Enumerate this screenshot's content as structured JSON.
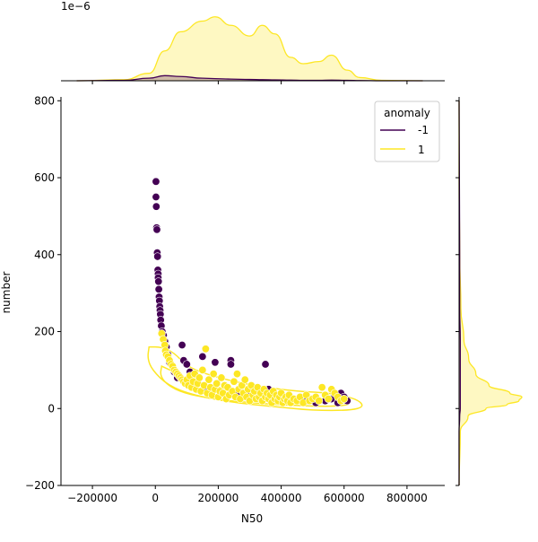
{
  "chart_data": {
    "type": "scatter",
    "xlabel": "N50",
    "ylabel": "number",
    "xlim": [
      -300000,
      920000
    ],
    "ylim": [
      -200,
      810
    ],
    "xticks": [
      -200000,
      0,
      200000,
      400000,
      600000,
      800000
    ],
    "xtick_labels": [
      "−200000",
      "0",
      "200000",
      "400000",
      "600000",
      "800000"
    ],
    "yticks": [
      -200,
      0,
      200,
      400,
      600,
      800
    ],
    "ytick_labels": [
      "−200",
      "0",
      "200",
      "400",
      "600",
      "800"
    ],
    "grid": false,
    "marginal_top_offset_label": "1e−6",
    "legend": {
      "title": "anomaly",
      "placement": "top-right",
      "entries": [
        {
          "label": "-1",
          "color": "#440154"
        },
        {
          "label": "1",
          "color": "#fde725"
        }
      ]
    },
    "series": [
      {
        "name": "-1",
        "color": "#440154",
        "points": [
          [
            2000,
            590
          ],
          [
            2000,
            550
          ],
          [
            3000,
            525
          ],
          [
            4000,
            470
          ],
          [
            5000,
            465
          ],
          [
            6000,
            405
          ],
          [
            7000,
            395
          ],
          [
            8000,
            360
          ],
          [
            9000,
            350
          ],
          [
            9000,
            340
          ],
          [
            10000,
            330
          ],
          [
            11000,
            310
          ],
          [
            12000,
            290
          ],
          [
            13000,
            280
          ],
          [
            14000,
            265
          ],
          [
            15000,
            255
          ],
          [
            16000,
            245
          ],
          [
            17000,
            230
          ],
          [
            19000,
            215
          ],
          [
            22000,
            200
          ],
          [
            26000,
            190
          ],
          [
            30000,
            175
          ],
          [
            35000,
            160
          ],
          [
            40000,
            140
          ],
          [
            45000,
            120
          ],
          [
            55000,
            110
          ],
          [
            60000,
            95
          ],
          [
            70000,
            80
          ],
          [
            85000,
            165
          ],
          [
            90000,
            125
          ],
          [
            100000,
            115
          ],
          [
            110000,
            95
          ],
          [
            125000,
            60
          ],
          [
            135000,
            70
          ],
          [
            150000,
            135
          ],
          [
            160000,
            55
          ],
          [
            190000,
            120
          ],
          [
            240000,
            125
          ],
          [
            240000,
            115
          ],
          [
            260000,
            40
          ],
          [
            280000,
            30
          ],
          [
            300000,
            35
          ],
          [
            320000,
            25
          ],
          [
            350000,
            115
          ],
          [
            360000,
            50
          ],
          [
            400000,
            30
          ],
          [
            430000,
            25
          ],
          [
            480000,
            20
          ],
          [
            510000,
            15
          ],
          [
            540000,
            20
          ],
          [
            560000,
            25
          ],
          [
            580000,
            15
          ],
          [
            590000,
            40
          ],
          [
            600000,
            30
          ],
          [
            610000,
            20
          ]
        ]
      },
      {
        "name": "1",
        "color": "#fde725",
        "points": [
          [
            20000,
            195
          ],
          [
            25000,
            180
          ],
          [
            30000,
            165
          ],
          [
            32000,
            150
          ],
          [
            35000,
            140
          ],
          [
            40000,
            135
          ],
          [
            45000,
            125
          ],
          [
            50000,
            115
          ],
          [
            55000,
            110
          ],
          [
            60000,
            100
          ],
          [
            65000,
            95
          ],
          [
            70000,
            90
          ],
          [
            75000,
            85
          ],
          [
            80000,
            80
          ],
          [
            85000,
            75
          ],
          [
            90000,
            70
          ],
          [
            95000,
            65
          ],
          [
            100000,
            75
          ],
          [
            105000,
            60
          ],
          [
            110000,
            85
          ],
          [
            115000,
            55
          ],
          [
            120000,
            70
          ],
          [
            125000,
            90
          ],
          [
            130000,
            50
          ],
          [
            135000,
            65
          ],
          [
            140000,
            80
          ],
          [
            145000,
            45
          ],
          [
            150000,
            100
          ],
          [
            155000,
            60
          ],
          [
            160000,
            155
          ],
          [
            165000,
            40
          ],
          [
            170000,
            75
          ],
          [
            175000,
            55
          ],
          [
            180000,
            35
          ],
          [
            185000,
            90
          ],
          [
            190000,
            50
          ],
          [
            195000,
            65
          ],
          [
            200000,
            30
          ],
          [
            205000,
            45
          ],
          [
            210000,
            80
          ],
          [
            215000,
            40
          ],
          [
            220000,
            60
          ],
          [
            225000,
            25
          ],
          [
            230000,
            55
          ],
          [
            235000,
            35
          ],
          [
            245000,
            45
          ],
          [
            250000,
            70
          ],
          [
            255000,
            30
          ],
          [
            260000,
            90
          ],
          [
            265000,
            50
          ],
          [
            270000,
            25
          ],
          [
            275000,
            60
          ],
          [
            280000,
            40
          ],
          [
            285000,
            75
          ],
          [
            290000,
            30
          ],
          [
            295000,
            50
          ],
          [
            300000,
            20
          ],
          [
            305000,
            60
          ],
          [
            310000,
            35
          ],
          [
            315000,
            45
          ],
          [
            320000,
            25
          ],
          [
            325000,
            55
          ],
          [
            330000,
            30
          ],
          [
            335000,
            40
          ],
          [
            340000,
            20
          ],
          [
            345000,
            50
          ],
          [
            350000,
            30
          ],
          [
            355000,
            40
          ],
          [
            360000,
            25
          ],
          [
            365000,
            35
          ],
          [
            370000,
            15
          ],
          [
            375000,
            45
          ],
          [
            380000,
            25
          ],
          [
            385000,
            35
          ],
          [
            390000,
            20
          ],
          [
            395000,
            30
          ],
          [
            400000,
            40
          ],
          [
            405000,
            15
          ],
          [
            410000,
            25
          ],
          [
            415000,
            30
          ],
          [
            420000,
            20
          ],
          [
            425000,
            35
          ],
          [
            430000,
            15
          ],
          [
            440000,
            25
          ],
          [
            450000,
            20
          ],
          [
            460000,
            30
          ],
          [
            470000,
            15
          ],
          [
            480000,
            35
          ],
          [
            490000,
            20
          ],
          [
            500000,
            25
          ],
          [
            510000,
            30
          ],
          [
            520000,
            20
          ],
          [
            530000,
            55
          ],
          [
            540000,
            35
          ],
          [
            550000,
            25
          ],
          [
            560000,
            50
          ],
          [
            570000,
            40
          ],
          [
            580000,
            30
          ],
          [
            590000,
            20
          ],
          [
            600000,
            25
          ]
        ]
      }
    ],
    "marginal_x_density": {
      "x": [
        -250000,
        -100000,
        -20000,
        30000,
        80000,
        150000,
        190000,
        240000,
        300000,
        340000,
        380000,
        430000,
        470000,
        520000,
        560000,
        610000,
        650000,
        720000,
        850000
      ],
      "anomaly_1": [
        0,
        0.05,
        0.35,
        1.4,
        2.3,
        2.8,
        3.0,
        2.6,
        2.1,
        2.6,
        2.2,
        1.1,
        0.8,
        0.9,
        1.2,
        0.5,
        0.15,
        0.02,
        0
      ],
      "anomaly_neg1": [
        0,
        0.02,
        0.12,
        0.24,
        0.2,
        0.12,
        0.1,
        0.08,
        0.06,
        0.05,
        0.04,
        0.03,
        0.02,
        0.02,
        0.03,
        0.02,
        0.01,
        0,
        0
      ]
    },
    "marginal_y_density": {
      "y": [
        -200,
        -60,
        -20,
        0,
        10,
        20,
        30,
        40,
        60,
        90,
        130,
        180,
        260,
        400,
        600,
        800
      ],
      "anomaly_1": [
        0,
        0.02,
        0.15,
        0.45,
        0.8,
        1.0,
        1.05,
        0.85,
        0.5,
        0.28,
        0.16,
        0.08,
        0.03,
        0.01,
        0,
        0
      ],
      "anomaly_neg1": [
        0,
        0,
        0.01,
        0.02,
        0.02,
        0.02,
        0.02,
        0.02,
        0.02,
        0.02,
        0.02,
        0.02,
        0.01,
        0.01,
        0.005,
        0
      ]
    },
    "contour_anomaly_1": {
      "outer": [
        [
          -20000,
          160
        ],
        [
          20000,
          160
        ],
        [
          60000,
          145
        ],
        [
          100000,
          110
        ],
        [
          160000,
          90
        ],
        [
          250000,
          70
        ],
        [
          350000,
          55
        ],
        [
          450000,
          45
        ],
        [
          560000,
          40
        ],
        [
          640000,
          25
        ],
        [
          665000,
          5
        ],
        [
          620000,
          -5
        ],
        [
          500000,
          -5
        ],
        [
          380000,
          5
        ],
        [
          250000,
          15
        ],
        [
          120000,
          35
        ],
        [
          40000,
          60
        ],
        [
          -10000,
          100
        ],
        [
          -25000,
          130
        ]
      ],
      "inner": [
        [
          20000,
          110
        ],
        [
          60000,
          95
        ],
        [
          120000,
          70
        ],
        [
          200000,
          55
        ],
        [
          300000,
          40
        ],
        [
          400000,
          30
        ],
        [
          520000,
          25
        ],
        [
          610000,
          20
        ],
        [
          620000,
          10
        ],
        [
          560000,
          5
        ],
        [
          440000,
          8
        ],
        [
          300000,
          15
        ],
        [
          180000,
          25
        ],
        [
          90000,
          40
        ],
        [
          40000,
          60
        ],
        [
          15000,
          85
        ]
      ]
    }
  }
}
